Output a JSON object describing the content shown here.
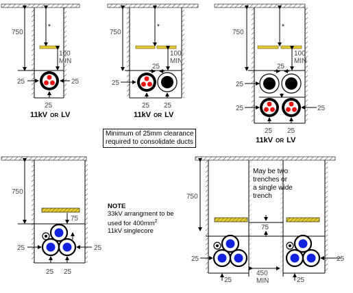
{
  "labels": {
    "depth": "750",
    "star": "*",
    "hundred": "100",
    "min": "MIN",
    "clear": "25",
    "seventy_five": "75",
    "four_fifty": "450",
    "caption_main": "11kV",
    "caption_or": "OR",
    "caption_lv": "LV"
  },
  "clearance_note": {
    "line1": "Minimum of 25mm clearance",
    "line2": "required to consolidate ducts"
  },
  "note33": {
    "title": "NOTE",
    "line1": "33kV arrangment to be",
    "line2_prefix": "used for 400mm",
    "line2_sup": "2",
    "line3": "11kV  singlecore"
  },
  "trench_note": {
    "line1": "May be two",
    "line2": "trenches or",
    "line3": "a single wide",
    "line4": "trench"
  },
  "colors": {
    "tape": "#e6cc33",
    "core_red": "#ee1111",
    "core_blue": "#1122dd",
    "duct_black": "#000000",
    "hatch": "#666666"
  }
}
